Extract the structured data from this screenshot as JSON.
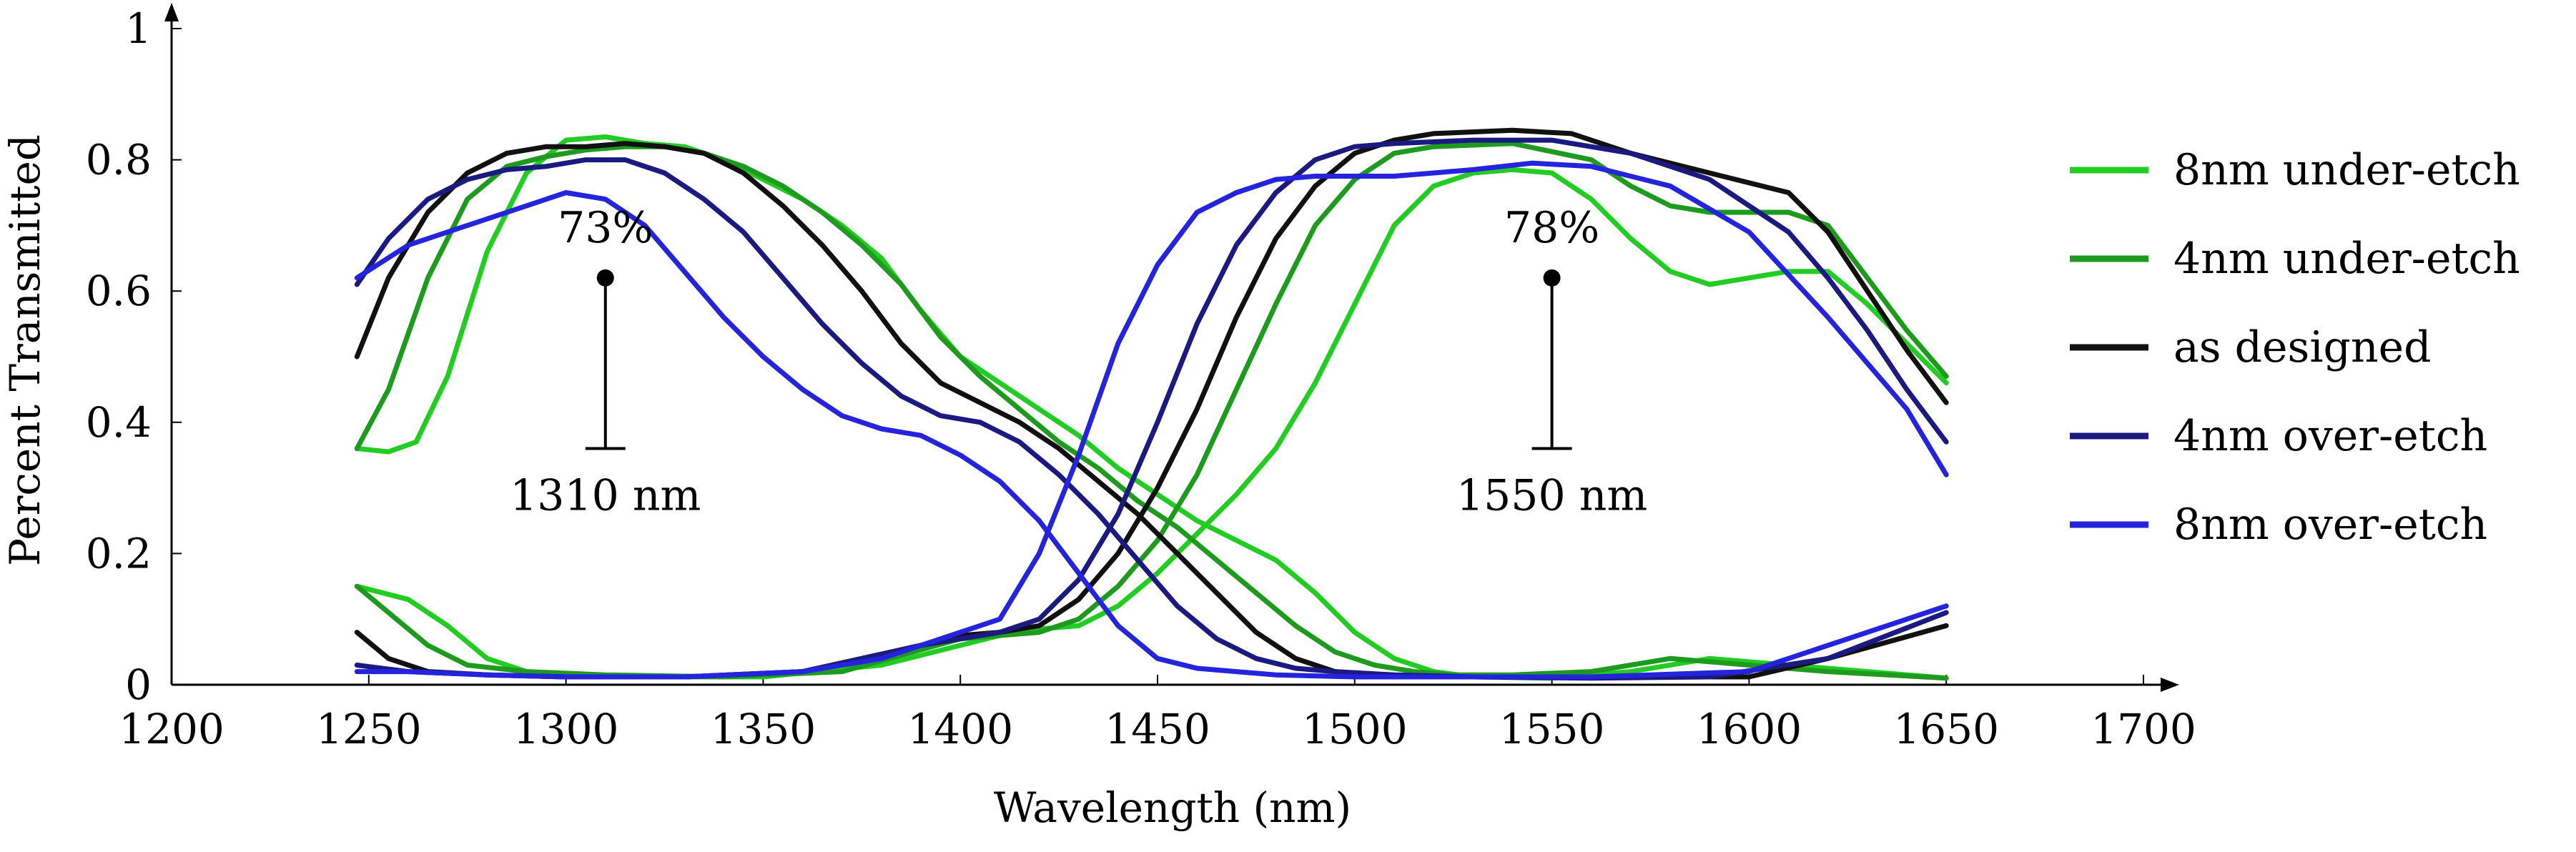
{
  "chart_data": {
    "type": "line",
    "title": "",
    "xlabel": "Wavelength (nm)",
    "ylabel": "Percent Transmitted",
    "xlim": [
      1200,
      1700
    ],
    "ylim": [
      0,
      1
    ],
    "xticks": [
      "1200",
      "1250",
      "1300",
      "1350",
      "1400",
      "1450",
      "1500",
      "1550",
      "1600",
      "1650",
      "1700"
    ],
    "yticks": [
      "0",
      "0.2",
      "0.4",
      "0.6",
      "0.8",
      "1"
    ],
    "grid": false,
    "legend_position": "right",
    "series": [
      {
        "name": "8nm under-etch",
        "color": "#22cc22",
        "channels": [
          {
            "x": [
              1247,
              1255,
              1262,
              1270,
              1280,
              1290,
              1300,
              1310,
              1320,
              1330,
              1340,
              1350,
              1360,
              1370,
              1380,
              1390,
              1400,
              1410,
              1420,
              1430,
              1440,
              1450,
              1460,
              1470,
              1480,
              1490,
              1500,
              1510,
              1520,
              1530,
              1550,
              1570,
              1590,
              1610,
              1630,
              1650
            ],
            "y": [
              0.36,
              0.355,
              0.37,
              0.47,
              0.66,
              0.78,
              0.83,
              0.835,
              0.825,
              0.82,
              0.8,
              0.77,
              0.74,
              0.7,
              0.65,
              0.57,
              0.5,
              0.46,
              0.42,
              0.38,
              0.33,
              0.29,
              0.25,
              0.22,
              0.19,
              0.14,
              0.08,
              0.04,
              0.02,
              0.012,
              0.01,
              0.02,
              0.04,
              0.03,
              0.02,
              0.01
            ]
          },
          {
            "x": [
              1247,
              1260,
              1270,
              1280,
              1290,
              1300,
              1320,
              1350,
              1380,
              1400,
              1410,
              1420,
              1430,
              1440,
              1450,
              1460,
              1470,
              1480,
              1490,
              1500,
              1510,
              1520,
              1530,
              1540,
              1550,
              1560,
              1570,
              1580,
              1590,
              1600,
              1610,
              1620,
              1630,
              1640,
              1650
            ],
            "y": [
              0.15,
              0.13,
              0.09,
              0.04,
              0.02,
              0.015,
              0.012,
              0.012,
              0.03,
              0.06,
              0.075,
              0.085,
              0.09,
              0.12,
              0.17,
              0.23,
              0.29,
              0.36,
              0.46,
              0.58,
              0.7,
              0.76,
              0.78,
              0.785,
              0.78,
              0.74,
              0.68,
              0.63,
              0.61,
              0.62,
              0.63,
              0.63,
              0.58,
              0.52,
              0.46
            ]
          }
        ]
      },
      {
        "name": "4nm under-etch",
        "color": "#1e9a1e",
        "channels": [
          {
            "x": [
              1247,
              1255,
              1265,
              1275,
              1285,
              1295,
              1305,
              1315,
              1325,
              1335,
              1345,
              1355,
              1365,
              1375,
              1385,
              1395,
              1405,
              1415,
              1425,
              1435,
              1445,
              1455,
              1465,
              1475,
              1485,
              1495,
              1505,
              1515,
              1525,
              1540,
              1560,
              1580,
              1600,
              1620,
              1650
            ],
            "y": [
              0.36,
              0.45,
              0.62,
              0.74,
              0.79,
              0.805,
              0.815,
              0.82,
              0.82,
              0.81,
              0.79,
              0.76,
              0.72,
              0.67,
              0.61,
              0.53,
              0.47,
              0.42,
              0.37,
              0.33,
              0.28,
              0.24,
              0.19,
              0.14,
              0.09,
              0.05,
              0.03,
              0.02,
              0.015,
              0.015,
              0.02,
              0.04,
              0.03,
              0.02,
              0.01
            ]
          },
          {
            "x": [
              1247,
              1255,
              1265,
              1275,
              1290,
              1310,
              1340,
              1370,
              1400,
              1420,
              1430,
              1440,
              1450,
              1460,
              1470,
              1480,
              1490,
              1500,
              1510,
              1520,
              1540,
              1560,
              1570,
              1580,
              1590,
              1610,
              1620,
              1630,
              1640,
              1650
            ],
            "y": [
              0.15,
              0.11,
              0.06,
              0.03,
              0.02,
              0.015,
              0.012,
              0.02,
              0.07,
              0.08,
              0.1,
              0.15,
              0.22,
              0.32,
              0.45,
              0.58,
              0.7,
              0.77,
              0.81,
              0.82,
              0.825,
              0.8,
              0.76,
              0.73,
              0.72,
              0.72,
              0.7,
              0.62,
              0.54,
              0.47
            ]
          }
        ]
      },
      {
        "name": "as designed",
        "color": "#111111",
        "channels": [
          {
            "x": [
              1247,
              1255,
              1265,
              1275,
              1285,
              1295,
              1305,
              1315,
              1325,
              1335,
              1345,
              1355,
              1365,
              1375,
              1385,
              1395,
              1405,
              1415,
              1425,
              1435,
              1445,
              1455,
              1465,
              1475,
              1485,
              1495,
              1505,
              1520,
              1540,
              1560,
              1580,
              1600,
              1620,
              1650
            ],
            "y": [
              0.5,
              0.62,
              0.72,
              0.78,
              0.81,
              0.82,
              0.82,
              0.825,
              0.82,
              0.81,
              0.78,
              0.73,
              0.67,
              0.6,
              0.52,
              0.46,
              0.43,
              0.4,
              0.36,
              0.31,
              0.26,
              0.2,
              0.14,
              0.08,
              0.04,
              0.02,
              0.015,
              0.012,
              0.012,
              0.012,
              0.012,
              0.012,
              0.04,
              0.09
            ]
          },
          {
            "x": [
              1247,
              1255,
              1265,
              1280,
              1300,
              1330,
              1360,
              1390,
              1400,
              1410,
              1420,
              1430,
              1440,
              1450,
              1460,
              1470,
              1480,
              1490,
              1500,
              1510,
              1520,
              1540,
              1555,
              1570,
              1590,
              1610,
              1620,
              1630,
              1640,
              1650
            ],
            "y": [
              0.08,
              0.04,
              0.02,
              0.015,
              0.012,
              0.012,
              0.02,
              0.06,
              0.075,
              0.08,
              0.09,
              0.13,
              0.2,
              0.3,
              0.42,
              0.56,
              0.68,
              0.76,
              0.81,
              0.83,
              0.84,
              0.845,
              0.84,
              0.81,
              0.78,
              0.75,
              0.69,
              0.6,
              0.51,
              0.43
            ]
          }
        ]
      },
      {
        "name": "4nm over-etch",
        "color": "#1a1a80",
        "channels": [
          {
            "x": [
              1247,
              1255,
              1265,
              1275,
              1285,
              1295,
              1305,
              1315,
              1325,
              1335,
              1345,
              1355,
              1365,
              1375,
              1385,
              1395,
              1405,
              1415,
              1425,
              1435,
              1445,
              1455,
              1465,
              1475,
              1485,
              1495,
              1510,
              1530,
              1560,
              1590,
              1620,
              1650
            ],
            "y": [
              0.61,
              0.68,
              0.74,
              0.77,
              0.785,
              0.79,
              0.8,
              0.8,
              0.78,
              0.74,
              0.69,
              0.62,
              0.55,
              0.49,
              0.44,
              0.41,
              0.4,
              0.37,
              0.32,
              0.26,
              0.19,
              0.12,
              0.07,
              0.04,
              0.025,
              0.02,
              0.015,
              0.012,
              0.01,
              0.012,
              0.04,
              0.11
            ]
          },
          {
            "x": [
              1247,
              1260,
              1280,
              1300,
              1330,
              1360,
              1390,
              1410,
              1420,
              1430,
              1440,
              1450,
              1460,
              1470,
              1480,
              1490,
              1500,
              1510,
              1530,
              1550,
              1570,
              1590,
              1610,
              1620,
              1630,
              1640,
              1650
            ],
            "y": [
              0.03,
              0.02,
              0.015,
              0.012,
              0.012,
              0.02,
              0.06,
              0.08,
              0.1,
              0.16,
              0.26,
              0.4,
              0.55,
              0.67,
              0.75,
              0.8,
              0.82,
              0.825,
              0.83,
              0.83,
              0.81,
              0.77,
              0.69,
              0.62,
              0.54,
              0.45,
              0.37
            ]
          }
        ]
      },
      {
        "name": "8nm over-etch",
        "color": "#2424dd",
        "channels": [
          {
            "x": [
              1247,
              1260,
              1275,
              1290,
              1300,
              1310,
              1320,
              1330,
              1340,
              1350,
              1360,
              1370,
              1380,
              1390,
              1400,
              1410,
              1420,
              1430,
              1440,
              1450,
              1460,
              1470,
              1480,
              1500,
              1530,
              1560,
              1600,
              1630,
              1650
            ],
            "y": [
              0.62,
              0.67,
              0.7,
              0.73,
              0.75,
              0.74,
              0.7,
              0.63,
              0.56,
              0.5,
              0.45,
              0.41,
              0.39,
              0.38,
              0.35,
              0.31,
              0.25,
              0.17,
              0.09,
              0.04,
              0.025,
              0.02,
              0.015,
              0.012,
              0.012,
              0.012,
              0.02,
              0.08,
              0.12
            ]
          },
          {
            "x": [
              1247,
              1260,
              1280,
              1300,
              1330,
              1360,
              1380,
              1400,
              1410,
              1420,
              1430,
              1440,
              1450,
              1460,
              1470,
              1480,
              1490,
              1500,
              1510,
              1520,
              1530,
              1545,
              1560,
              1580,
              1600,
              1620,
              1640,
              1650
            ],
            "y": [
              0.02,
              0.02,
              0.015,
              0.012,
              0.012,
              0.02,
              0.04,
              0.08,
              0.1,
              0.2,
              0.35,
              0.52,
              0.64,
              0.72,
              0.75,
              0.77,
              0.775,
              0.775,
              0.775,
              0.78,
              0.785,
              0.795,
              0.79,
              0.76,
              0.69,
              0.56,
              0.42,
              0.32
            ]
          }
        ]
      }
    ],
    "annotations": [
      {
        "x": 1310,
        "y_top": 0.62,
        "y_bottom": 0.36,
        "label": "73%",
        "sublabel": "1310 nm"
      },
      {
        "x": 1550,
        "y_top": 0.62,
        "y_bottom": 0.36,
        "label": "78%",
        "sublabel": "1550 nm"
      }
    ]
  }
}
